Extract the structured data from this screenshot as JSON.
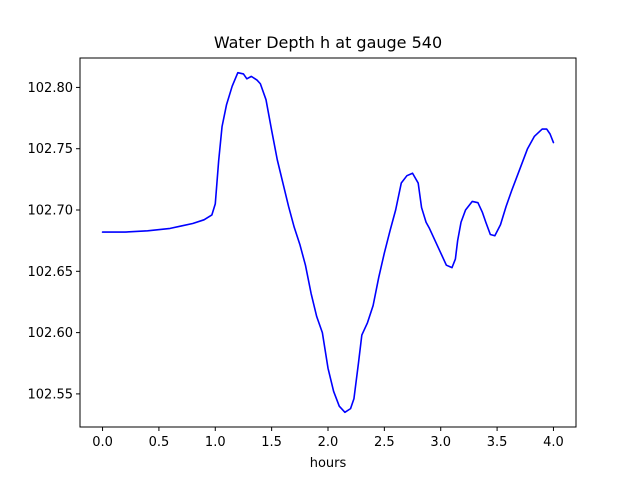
{
  "chart_data": {
    "type": "line",
    "title": "Water Depth h at gauge 540",
    "xlabel": "hours",
    "ylabel": "",
    "xlim": [
      -0.2,
      4.2
    ],
    "ylim": [
      102.523,
      102.824
    ],
    "xticks": [
      0.0,
      0.5,
      1.0,
      1.5,
      2.0,
      2.5,
      3.0,
      3.5,
      4.0
    ],
    "xtick_labels": [
      "0.0",
      "0.5",
      "1.0",
      "1.5",
      "2.0",
      "2.5",
      "3.0",
      "3.5",
      "4.0"
    ],
    "yticks": [
      102.55,
      102.6,
      102.65,
      102.7,
      102.75,
      102.8
    ],
    "ytick_labels": [
      "102.55",
      "102.60",
      "102.65",
      "102.70",
      "102.75",
      "102.80"
    ],
    "grid": false,
    "series": [
      {
        "color": "#0000ff",
        "x": [
          0.0,
          0.2,
          0.4,
          0.6,
          0.7,
          0.8,
          0.9,
          0.97,
          1.0,
          1.03,
          1.06,
          1.1,
          1.15,
          1.2,
          1.25,
          1.28,
          1.32,
          1.37,
          1.4,
          1.45,
          1.5,
          1.55,
          1.6,
          1.65,
          1.7,
          1.75,
          1.8,
          1.85,
          1.9,
          1.95,
          2.0,
          2.05,
          2.1,
          2.15,
          2.2,
          2.23,
          2.27,
          2.3,
          2.35,
          2.4,
          2.45,
          2.5,
          2.55,
          2.6,
          2.65,
          2.7,
          2.75,
          2.8,
          2.83,
          2.87,
          2.9,
          2.95,
          3.0,
          3.05,
          3.1,
          3.13,
          3.15,
          3.18,
          3.22,
          3.28,
          3.33,
          3.37,
          3.4,
          3.44,
          3.48,
          3.53,
          3.58,
          3.63,
          3.7,
          3.77,
          3.83,
          3.9,
          3.94,
          3.97,
          4.0
        ],
        "y": [
          102.682,
          102.682,
          102.683,
          102.685,
          102.687,
          102.689,
          102.692,
          102.696,
          102.705,
          102.74,
          102.768,
          102.786,
          102.801,
          102.812,
          102.811,
          102.807,
          102.809,
          102.806,
          102.803,
          102.79,
          102.765,
          102.741,
          102.722,
          102.703,
          102.686,
          102.672,
          102.655,
          102.632,
          102.613,
          102.6,
          102.571,
          102.552,
          102.54,
          102.535,
          102.538,
          102.546,
          102.575,
          102.598,
          102.608,
          102.622,
          102.645,
          102.665,
          102.683,
          102.7,
          102.722,
          102.728,
          102.73,
          102.722,
          102.702,
          102.69,
          102.685,
          102.675,
          102.665,
          102.655,
          102.653,
          102.66,
          102.675,
          102.69,
          102.7,
          102.707,
          102.706,
          102.698,
          102.69,
          102.68,
          102.679,
          102.688,
          102.703,
          102.716,
          102.733,
          102.75,
          102.76,
          102.766,
          102.766,
          102.762,
          102.755
        ]
      }
    ]
  }
}
